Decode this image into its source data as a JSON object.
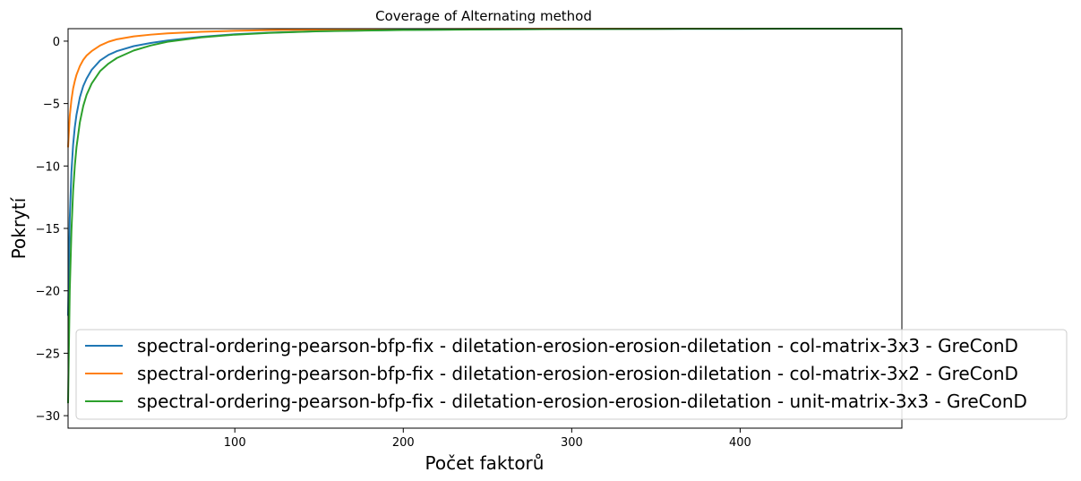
{
  "chart_data": {
    "type": "line",
    "title": "Coverage of Alternating method",
    "xlabel": "Počet faktorů",
    "ylabel": "Pokrytí",
    "xlim": [
      1,
      496
    ],
    "ylim": [
      -31,
      1
    ],
    "xticks": [
      100,
      200,
      300,
      400
    ],
    "yticks": [
      0,
      -5,
      -10,
      -15,
      -20,
      -25,
      -30
    ],
    "grid": false,
    "legend_position": "lower-right",
    "series": [
      {
        "name": "spectral-ordering-pearson-bfp-fix - diletation-erosion-erosion-diletation - col-matrix-3x3 - GreConD",
        "color": "#1f77b4",
        "x": [
          1,
          2,
          3,
          4,
          5,
          6,
          8,
          10,
          12,
          15,
          20,
          25,
          30,
          40,
          50,
          60,
          80,
          100,
          120,
          150,
          200,
          250,
          300,
          350,
          400,
          450,
          496
        ],
        "y": [
          -22.0,
          -14.2,
          -10.5,
          -8.3,
          -6.9,
          -5.9,
          -4.5,
          -3.6,
          -3.0,
          -2.3,
          -1.55,
          -1.1,
          -0.8,
          -0.4,
          -0.15,
          0.05,
          0.35,
          0.55,
          0.68,
          0.8,
          0.9,
          0.95,
          0.97,
          0.985,
          0.993,
          0.998,
          1.0
        ]
      },
      {
        "name": "spectral-ordering-pearson-bfp-fix - diletation-erosion-erosion-diletation - col-matrix-3x2 - GreConD",
        "color": "#ff7f0e",
        "x": [
          1,
          2,
          3,
          4,
          5,
          6,
          8,
          10,
          12,
          15,
          20,
          25,
          30,
          40,
          50,
          60,
          80,
          100,
          120,
          150,
          200,
          250,
          300,
          350,
          400,
          450,
          496
        ],
        "y": [
          -8.5,
          -6.0,
          -4.7,
          -3.8,
          -3.2,
          -2.7,
          -2.0,
          -1.5,
          -1.15,
          -0.8,
          -0.35,
          -0.05,
          0.15,
          0.38,
          0.52,
          0.62,
          0.75,
          0.83,
          0.88,
          0.93,
          0.96,
          0.98,
          0.99,
          0.995,
          0.998,
          0.999,
          1.0
        ]
      },
      {
        "name": "spectral-ordering-pearson-bfp-fix - diletation-erosion-erosion-diletation - unit-matrix-3x3 - GreConD",
        "color": "#2ca02c",
        "x": [
          1,
          2,
          3,
          4,
          5,
          6,
          8,
          10,
          12,
          15,
          20,
          25,
          30,
          40,
          50,
          60,
          80,
          100,
          120,
          150,
          200,
          250,
          300,
          350,
          400,
          450,
          496
        ],
        "y": [
          -29.0,
          -20.0,
          -15.2,
          -12.0,
          -10.0,
          -8.5,
          -6.5,
          -5.2,
          -4.3,
          -3.4,
          -2.4,
          -1.8,
          -1.35,
          -0.75,
          -0.35,
          -0.05,
          0.3,
          0.52,
          0.66,
          0.79,
          0.89,
          0.94,
          0.97,
          0.985,
          0.993,
          0.998,
          1.0
        ]
      }
    ]
  }
}
